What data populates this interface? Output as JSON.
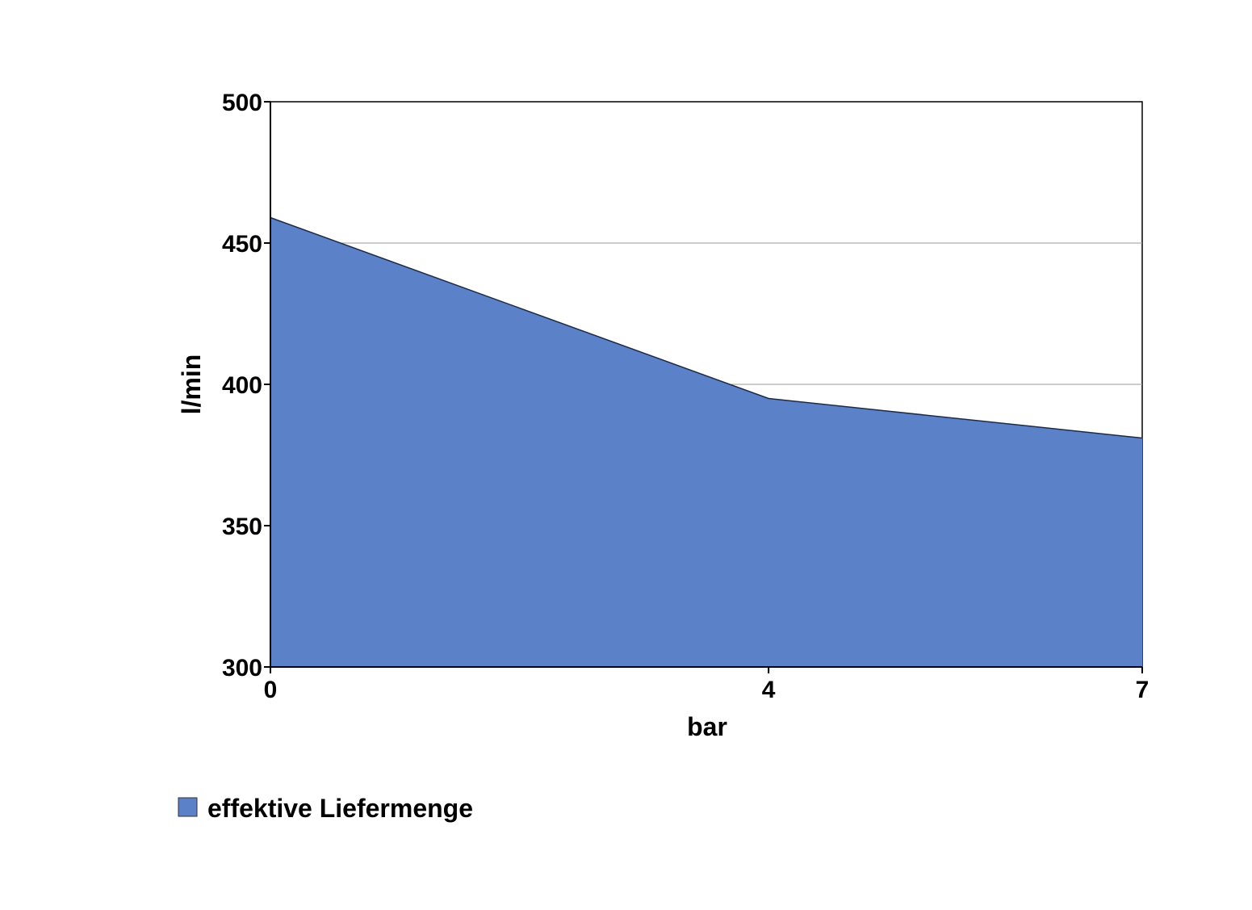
{
  "chart_data": {
    "type": "area",
    "x": [
      0,
      4,
      7
    ],
    "x_tick_labels": [
      "0",
      "4",
      "7"
    ],
    "series": [
      {
        "name": "effektive Liefermenge",
        "values": [
          459,
          395,
          381
        ],
        "color": "#5b82c8"
      }
    ],
    "y_ticks": [
      300,
      350,
      400,
      450,
      500
    ],
    "ylim": [
      300,
      500
    ],
    "xlabel": "bar",
    "ylabel": "l/min",
    "grid": true,
    "legend_position": "bottom-left"
  }
}
